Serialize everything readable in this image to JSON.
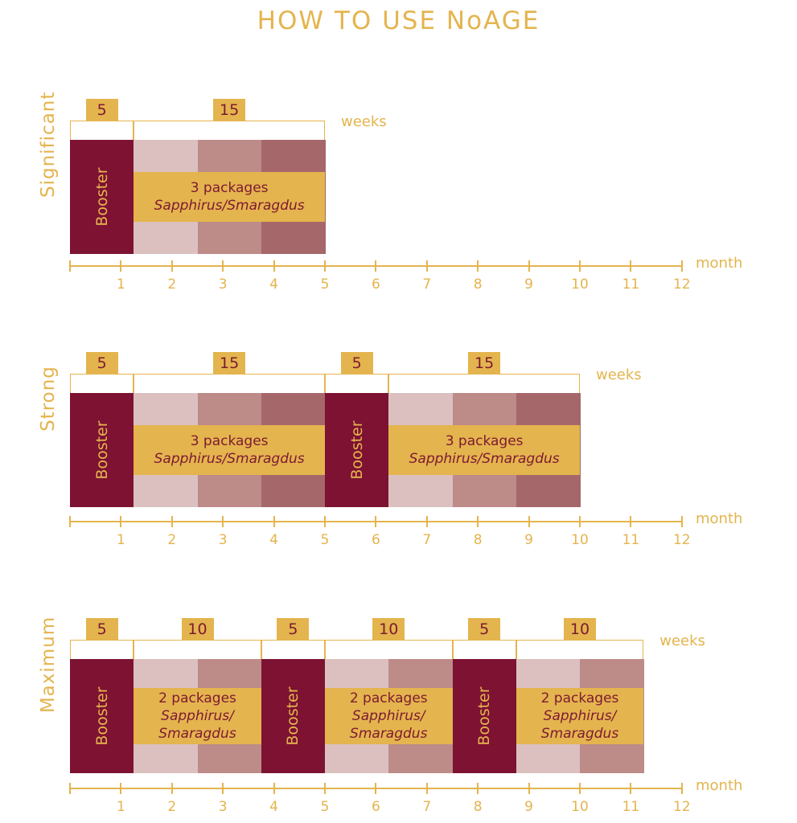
{
  "title": "HOW TO USE NoAGE",
  "colors": {
    "gold": "#e4b44e",
    "booster": "#7d1232",
    "text": "#7d1a33",
    "cells": [
      "#dbc0bf",
      "#bd8b88",
      "#a6676a"
    ]
  },
  "week_unit": "weeks",
  "month_unit": "month",
  "month_ticks": [
    "1",
    "2",
    "3",
    "4",
    "5",
    "6",
    "7",
    "8",
    "9",
    "10",
    "11",
    "12"
  ],
  "sections": [
    {
      "label": "Significant",
      "segments": [
        {
          "type": "booster",
          "weeks": "5",
          "label": "Booster"
        },
        {
          "type": "packages",
          "weeks": "15",
          "cells": 3,
          "line1": "3 packages",
          "line2": "Sapphirus/Smaragdus"
        }
      ]
    },
    {
      "label": "Strong",
      "segments": [
        {
          "type": "booster",
          "weeks": "5",
          "label": "Booster"
        },
        {
          "type": "packages",
          "weeks": "15",
          "cells": 3,
          "line1": "3 packages",
          "line2": "Sapphirus/Smaragdus"
        },
        {
          "type": "booster",
          "weeks": "5",
          "label": "Booster"
        },
        {
          "type": "packages",
          "weeks": "15",
          "cells": 3,
          "line1": "3 packages",
          "line2": "Sapphirus/Smaragdus"
        }
      ]
    },
    {
      "label": "Maximum",
      "segments": [
        {
          "type": "booster",
          "weeks": "5",
          "label": "Booster"
        },
        {
          "type": "packages",
          "weeks": "10",
          "cells": 2,
          "line1": "2 packages",
          "line2": "Sapphirus/",
          "line3": "Smaragdus"
        },
        {
          "type": "booster",
          "weeks": "5",
          "label": "Booster"
        },
        {
          "type": "packages",
          "weeks": "10",
          "cells": 2,
          "line1": "2 packages",
          "line2": "Sapphirus/",
          "line3": "Smaragdus"
        },
        {
          "type": "booster",
          "weeks": "5",
          "label": "Booster"
        },
        {
          "type": "packages",
          "weeks": "10",
          "cells": 2,
          "line1": "2 packages",
          "line2": "Sapphirus/",
          "line3": "Smaragdus"
        }
      ]
    }
  ]
}
